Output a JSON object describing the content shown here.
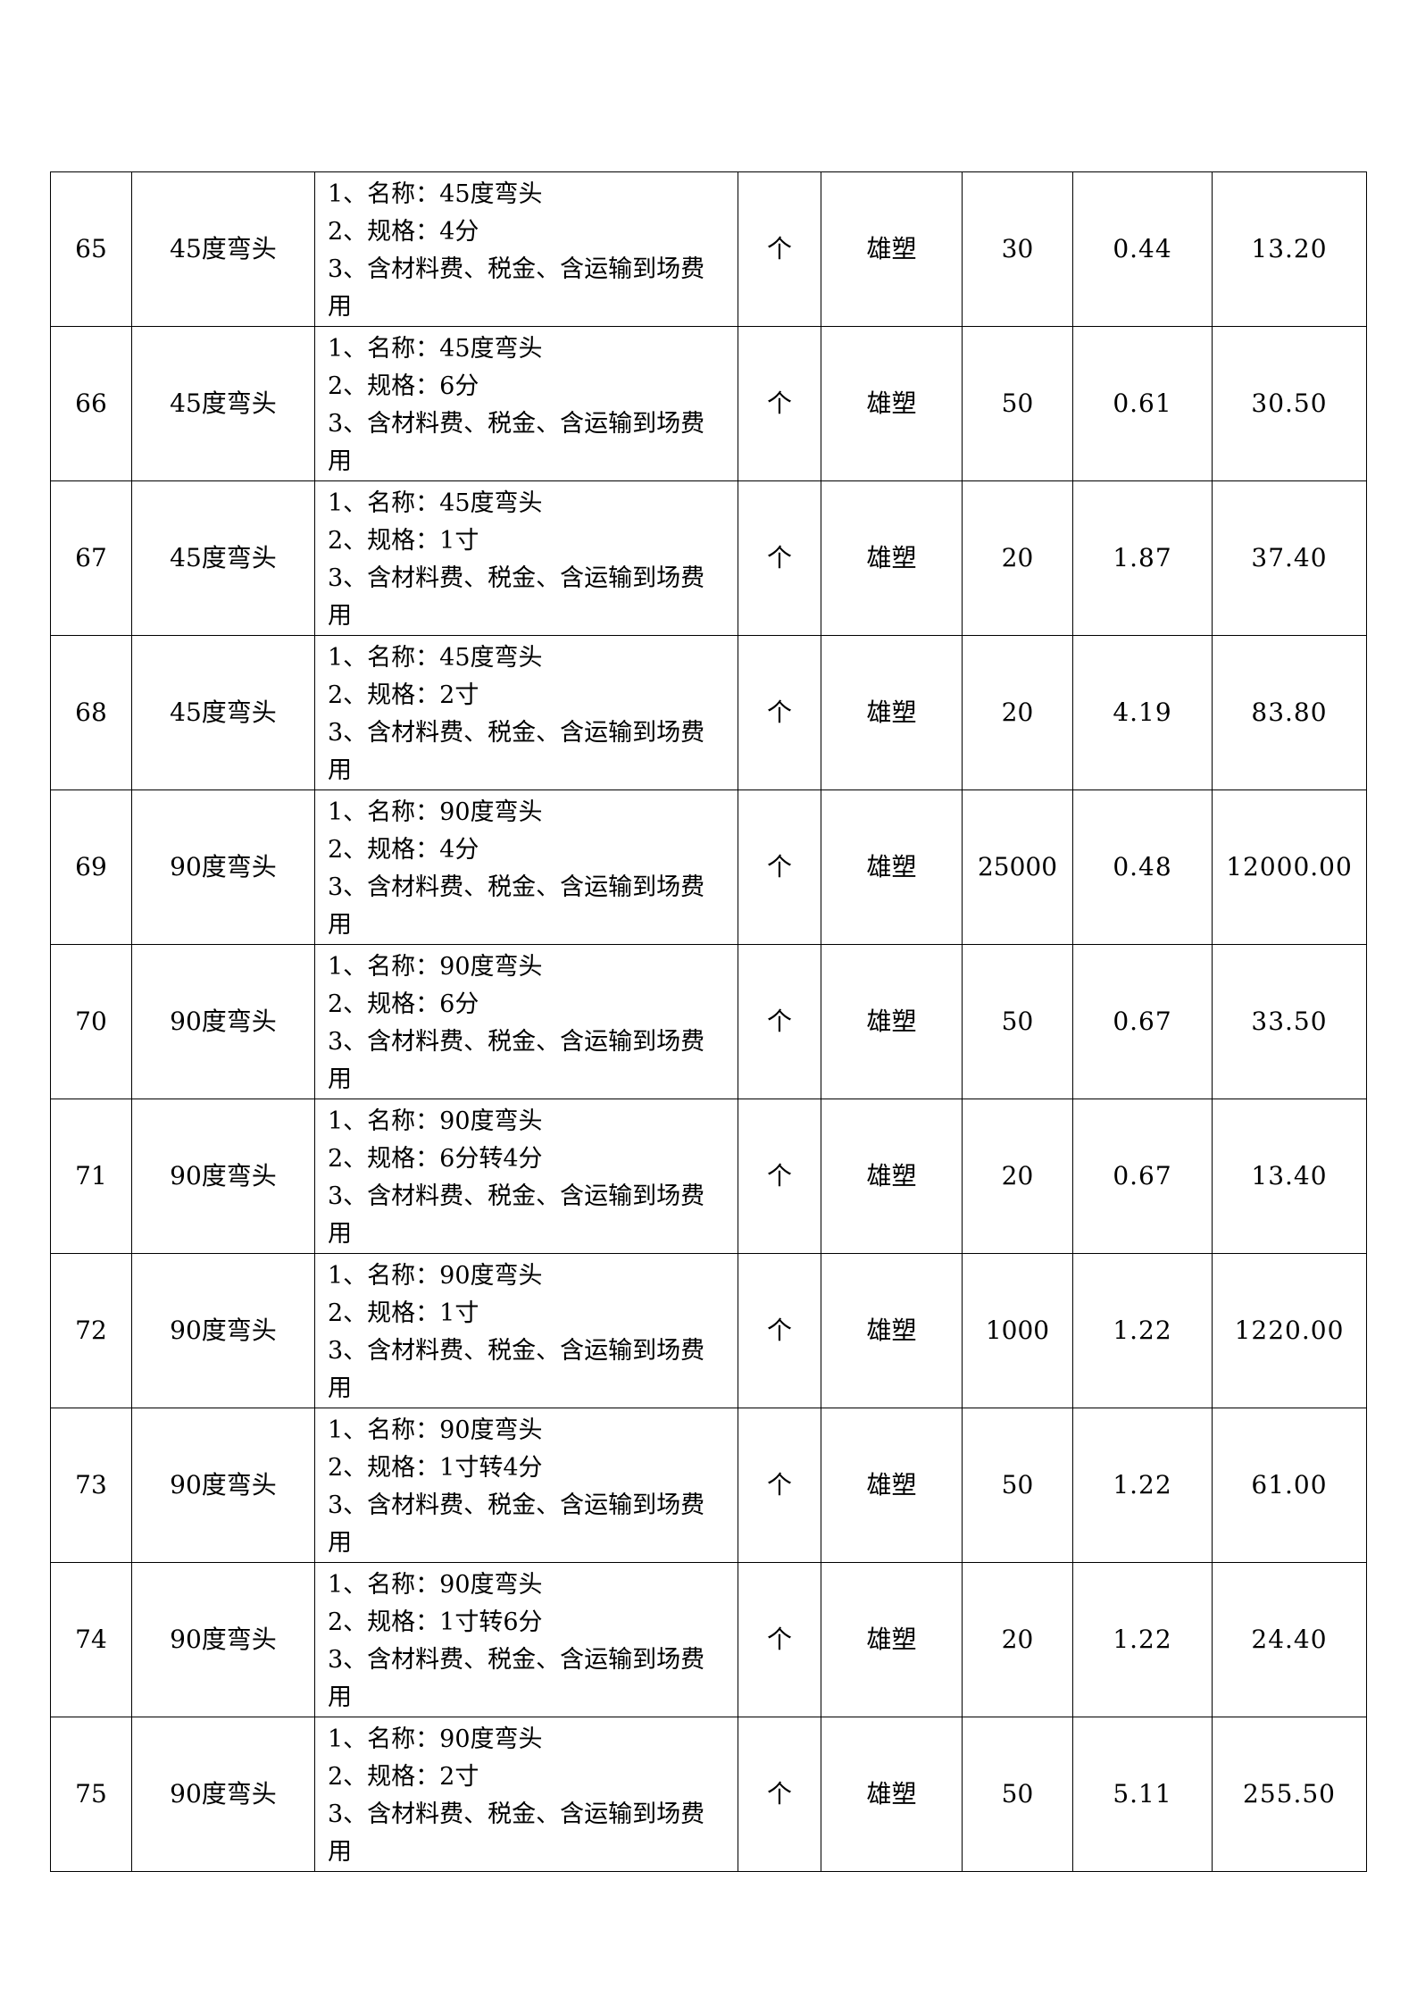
{
  "rows": [
    {
      "no": "65",
      "name": "45度弯头",
      "desc": [
        "1、名称：45度弯头",
        "2、规格：4分",
        "3、含材料费、税金、含运输到场费",
        "用"
      ],
      "unit": "个",
      "brand": "雄塑",
      "qty": "30",
      "price": "0.44",
      "total": "13.20"
    },
    {
      "no": "66",
      "name": "45度弯头",
      "desc": [
        "1、名称：45度弯头",
        "2、规格：6分",
        "3、含材料费、税金、含运输到场费",
        "用"
      ],
      "unit": "个",
      "brand": "雄塑",
      "qty": "50",
      "price": "0.61",
      "total": "30.50"
    },
    {
      "no": "67",
      "name": "45度弯头",
      "desc": [
        "1、名称：45度弯头",
        "2、规格：1寸",
        "3、含材料费、税金、含运输到场费",
        "用"
      ],
      "unit": "个",
      "brand": "雄塑",
      "qty": "20",
      "price": "1.87",
      "total": "37.40"
    },
    {
      "no": "68",
      "name": "45度弯头",
      "desc": [
        "1、名称：45度弯头",
        "2、规格：2寸",
        "3、含材料费、税金、含运输到场费",
        "用"
      ],
      "unit": "个",
      "brand": "雄塑",
      "qty": "20",
      "price": "4.19",
      "total": "83.80"
    },
    {
      "no": "69",
      "name": "90度弯头",
      "desc": [
        "1、名称：90度弯头",
        "2、规格：4分",
        "3、含材料费、税金、含运输到场费",
        "用"
      ],
      "unit": "个",
      "brand": "雄塑",
      "qty": "25000",
      "price": "0.48",
      "total": "12000.00"
    },
    {
      "no": "70",
      "name": "90度弯头",
      "desc": [
        "1、名称：90度弯头",
        "2、规格：6分",
        "3、含材料费、税金、含运输到场费",
        "用"
      ],
      "unit": "个",
      "brand": "雄塑",
      "qty": "50",
      "price": "0.67",
      "total": "33.50"
    },
    {
      "no": "71",
      "name": "90度弯头",
      "desc": [
        "1、名称：90度弯头",
        "2、规格：6分转4分",
        "3、含材料费、税金、含运输到场费",
        "用"
      ],
      "unit": "个",
      "brand": "雄塑",
      "qty": "20",
      "price": "0.67",
      "total": "13.40"
    },
    {
      "no": "72",
      "name": "90度弯头",
      "desc": [
        "1、名称：90度弯头",
        "2、规格：1寸",
        "3、含材料费、税金、含运输到场费",
        "用"
      ],
      "unit": "个",
      "brand": "雄塑",
      "qty": "1000",
      "price": "1.22",
      "total": "1220.00"
    },
    {
      "no": "73",
      "name": "90度弯头",
      "desc": [
        "1、名称：90度弯头",
        "2、规格：1寸转4分",
        "3、含材料费、税金、含运输到场费",
        "用"
      ],
      "unit": "个",
      "brand": "雄塑",
      "qty": "50",
      "price": "1.22",
      "total": "61.00"
    },
    {
      "no": "74",
      "name": "90度弯头",
      "desc": [
        "1、名称：90度弯头",
        "2、规格：1寸转6分",
        "3、含材料费、税金、含运输到场费",
        "用"
      ],
      "unit": "个",
      "brand": "雄塑",
      "qty": "20",
      "price": "1.22",
      "total": "24.40"
    },
    {
      "no": "75",
      "name": "90度弯头",
      "desc": [
        "1、名称：90度弯头",
        "2、规格：2寸",
        "3、含材料费、税金、含运输到场费",
        "用"
      ],
      "unit": "个",
      "brand": "雄塑",
      "qty": "50",
      "price": "5.11",
      "total": "255.50"
    }
  ]
}
